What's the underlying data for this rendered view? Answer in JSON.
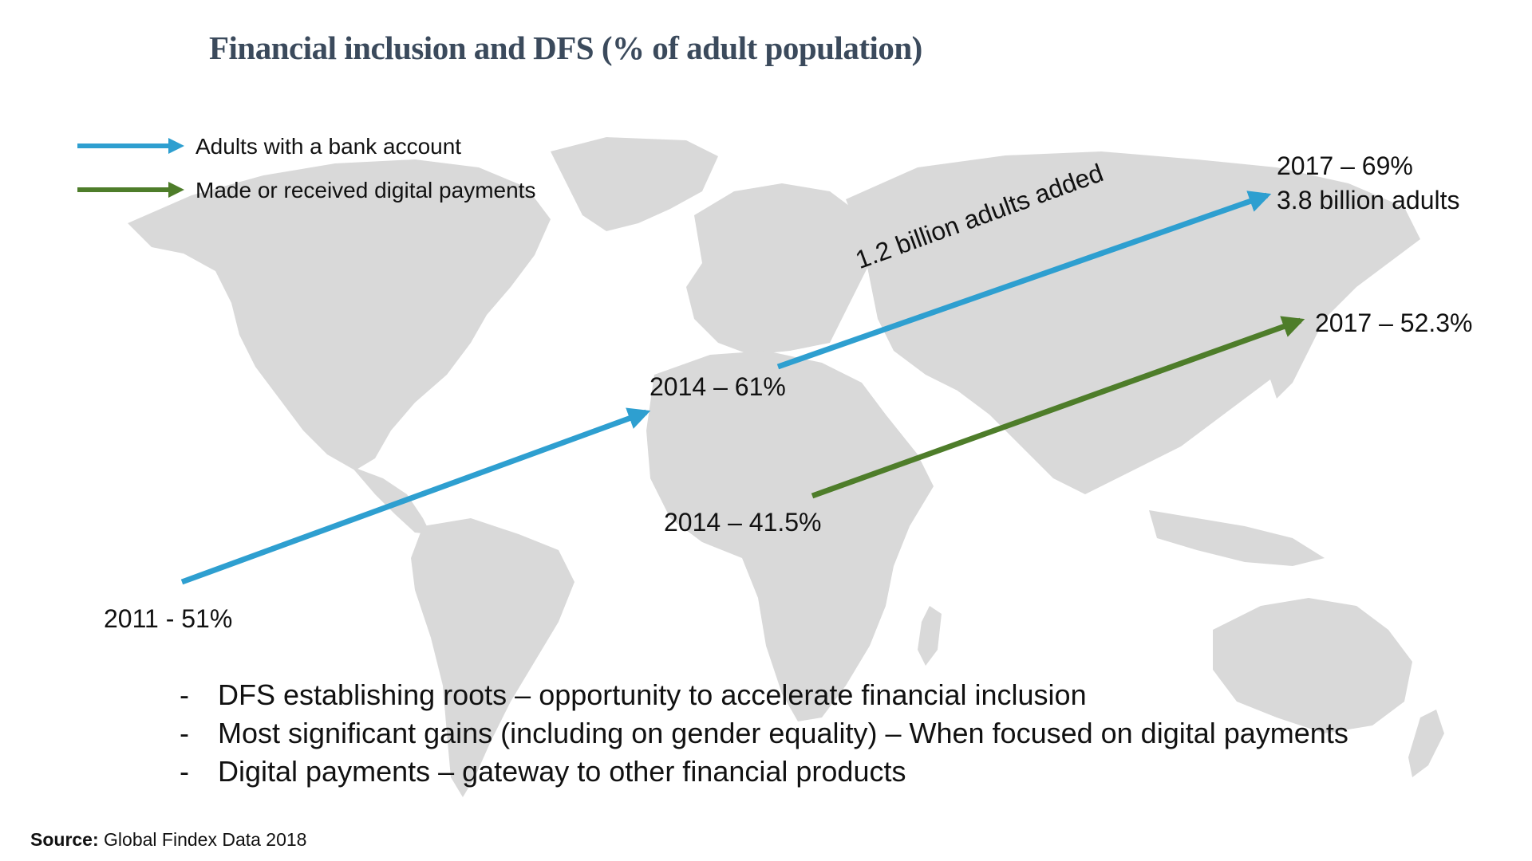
{
  "title": "Financial inclusion and DFS (% of adult population)",
  "colors": {
    "bank_account": "#2e9fd0",
    "digital_payments": "#4e7d2a",
    "map": "#d9d9d9",
    "title": "#3b4a5c"
  },
  "legend": [
    {
      "label": "Adults with a bank account",
      "color": "#2e9fd0"
    },
    {
      "label": "Made or received digital payments",
      "color": "#4e7d2a"
    }
  ],
  "annotations": {
    "bank_2011": "2011 - 51%",
    "bank_2014": "2014 – 61%",
    "bank_2017_pct": "2017 – 69%",
    "bank_2017_adults": "3.8 billion adults",
    "adults_added": "1.2 billion adults added",
    "dp_2014": "2014 – 41.5%",
    "dp_2017": "2017 – 52.3%"
  },
  "bullets": [
    {
      "dash": "-",
      "text": "DFS establishing roots – opportunity to accelerate financial inclusion"
    },
    {
      "dash": "-",
      "text": "Most significant gains (including on gender equality) – When focused on digital payments"
    },
    {
      "dash": "-",
      "text": "Digital payments – gateway to other financial products"
    }
  ],
  "source": {
    "label": "Source:",
    "text": "Global Findex Data 2018"
  },
  "background": "world-map"
}
